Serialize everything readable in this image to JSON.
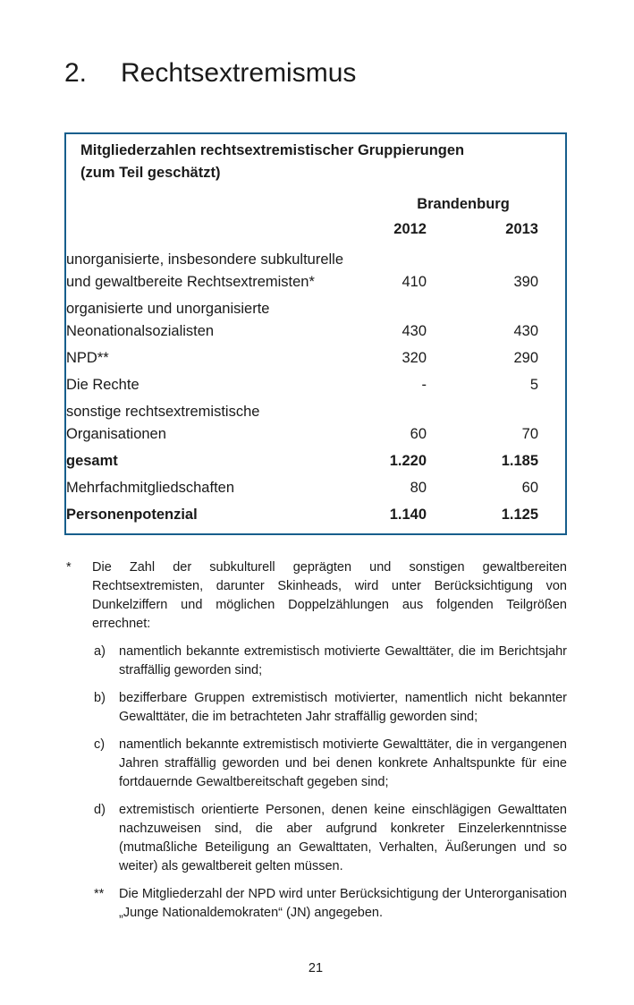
{
  "colors": {
    "box_border": "#175E8C",
    "text": "#1a1a1a",
    "background": "#ffffff"
  },
  "page": {
    "heading_number": "2.",
    "heading_title": "Rechtsextremismus",
    "page_number": "21"
  },
  "table": {
    "title_line1": "Mitgliederzahlen rechtsextremistischer Gruppierungen",
    "title_line2": "(zum Teil geschätzt)",
    "region_header": "Brandenburg",
    "col_headers": [
      "2012",
      "2013"
    ],
    "rows": [
      {
        "label": "unorganisierte, insbesondere subkulturelle\nund gewaltbereite Rechtsextremisten*",
        "v2012": "410",
        "v2013": "390",
        "bold": false
      },
      {
        "label": "organisierte und unorganisierte\nNeonationalsozialisten",
        "v2012": "430",
        "v2013": "430",
        "bold": false
      },
      {
        "label": "NPD**",
        "v2012": "320",
        "v2013": "290",
        "bold": false
      },
      {
        "label": "Die Rechte",
        "v2012": "-",
        "v2013": "5",
        "bold": false
      },
      {
        "label": "sonstige rechtsextremistische\nOrganisationen",
        "v2012": "60",
        "v2013": "70",
        "bold": false
      },
      {
        "label": "gesamt",
        "v2012": "1.220",
        "v2013": "1.185",
        "bold": true
      },
      {
        "label": "Mehrfachmitgliedschaften",
        "v2012": "80",
        "v2013": "60",
        "bold": false
      },
      {
        "label": "Personenpotenzial",
        "v2012": "1.140",
        "v2013": "1.125",
        "bold": true
      }
    ]
  },
  "footnotes": [
    {
      "marker": "*",
      "level": 1,
      "text": "Die Zahl der subkulturell geprägten und sonstigen gewaltbereiten Rechtsextremisten, darunter Skinheads, wird unter Berücksichtigung von Dunkelziffern und möglichen Doppelzählungen aus folgenden Teilgrößen errechnet:"
    },
    {
      "marker": "a)",
      "level": 2,
      "text": "namentlich bekannte extremistisch motivierte Gewalttäter, die im Berichtsjahr straffällig geworden sind;"
    },
    {
      "marker": "b)",
      "level": 2,
      "text": "bezifferbare Gruppen extremistisch motivierter, namentlich nicht bekannter Gewalttäter, die im betrachteten Jahr straffällig geworden sind;"
    },
    {
      "marker": "c)",
      "level": 2,
      "text": "namentlich bekannte extremistisch motivierte Gewalttäter, die in vergangenen Jahren straffällig geworden und bei denen konkrete Anhaltspunkte für eine fortdauernde Gewaltbereitschaft gegeben sind;"
    },
    {
      "marker": "d)",
      "level": 2,
      "text": "extremistisch orientierte Personen, denen keine einschlägigen Gewalttaten nachzuweisen sind, die aber aufgrund konkreter Einzelerkenntnisse (mutmaßliche Beteiligung an Gewalttaten, Verhalten, Äußerungen und so weiter) als gewaltbereit gelten müssen."
    },
    {
      "marker": "**",
      "level": 2,
      "text": "Die Mitgliederzahl der NPD wird unter Berücksichtigung der Unterorganisation „Junge Nationaldemokraten“ (JN) angegeben."
    }
  ]
}
